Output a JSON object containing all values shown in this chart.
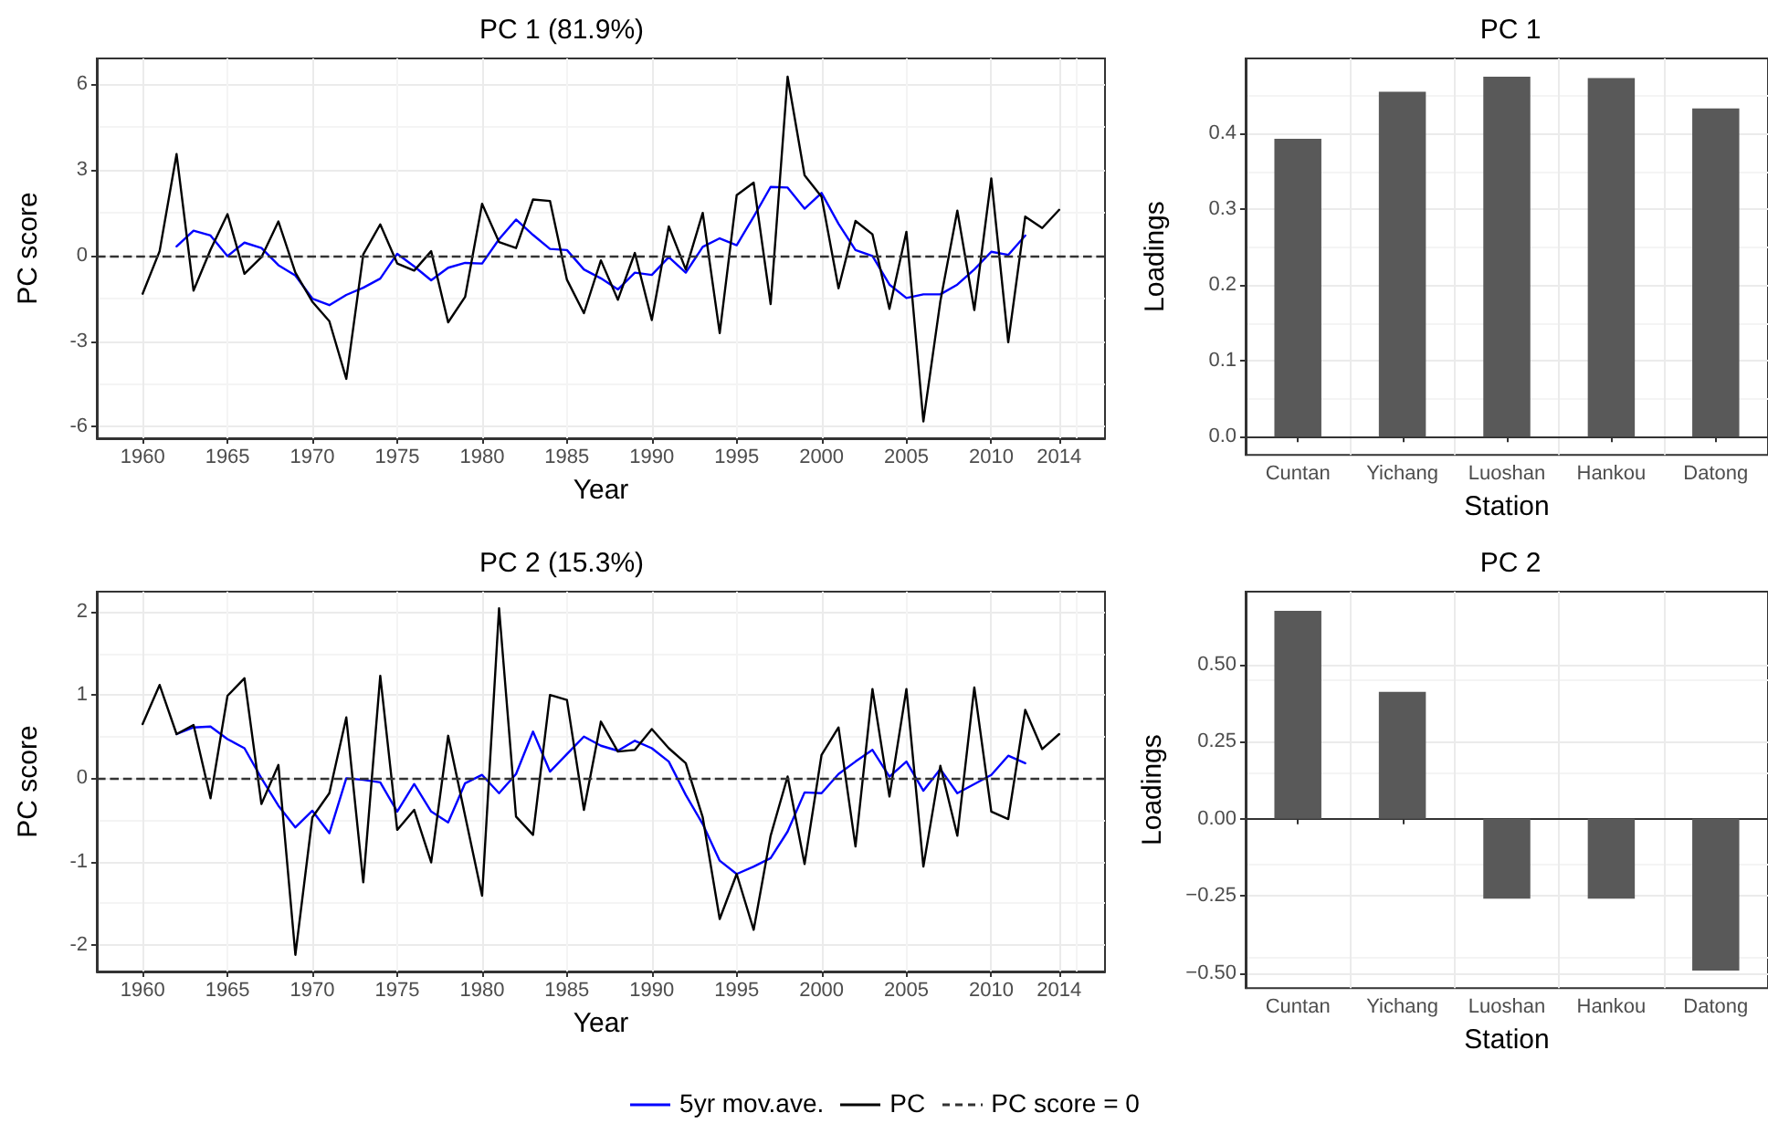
{
  "chart_data": [
    {
      "type": "line",
      "title": "PC 1 (81.9%)",
      "xlabel": "Year",
      "ylabel": "PC score",
      "x": [
        1960,
        1961,
        1962,
        1963,
        1964,
        1965,
        1966,
        1967,
        1968,
        1969,
        1970,
        1971,
        1972,
        1973,
        1974,
        1975,
        1976,
        1977,
        1978,
        1979,
        1980,
        1981,
        1982,
        1983,
        1984,
        1985,
        1986,
        1987,
        1988,
        1989,
        1990,
        1991,
        1992,
        1993,
        1994,
        1995,
        1996,
        1997,
        1998,
        1999,
        2000,
        2001,
        2002,
        2003,
        2004,
        2005,
        2006,
        2007,
        2008,
        2009,
        2010,
        2011,
        2012,
        2013,
        2014
      ],
      "series": [
        {
          "name": "5yr mov.ave.",
          "color": "#0000ff",
          "values": [
            null,
            null,
            0.32,
            0.87,
            0.7,
            -0.02,
            0.45,
            0.26,
            -0.34,
            -0.7,
            -1.51,
            -1.74,
            -1.38,
            -1.13,
            -0.81,
            0.06,
            -0.38,
            -0.87,
            -0.43,
            -0.26,
            -0.28,
            0.57,
            1.26,
            0.72,
            0.23,
            0.19,
            -0.49,
            -0.8,
            -1.19,
            -0.6,
            -0.68,
            -0.06,
            -0.6,
            0.3,
            0.6,
            0.36,
            1.36,
            2.4,
            2.38,
            1.64,
            2.19,
            1.11,
            0.19,
            -0.02,
            -1.02,
            -1.49,
            -1.36,
            -1.36,
            -1.02,
            -0.49,
            0.13,
            0.02,
            0.7,
            null,
            null
          ]
        },
        {
          "name": "PC",
          "color": "#000000",
          "values": [
            -1.34,
            0.15,
            3.55,
            -1.23,
            0.2,
            1.45,
            -0.64,
            -0.06,
            1.19,
            -0.6,
            -1.62,
            -2.3,
            -4.32,
            0.04,
            1.09,
            -0.28,
            -0.53,
            0.15,
            -2.34,
            -1.45,
            1.81,
            0.47,
            0.26,
            1.96,
            1.91,
            -0.85,
            -2.02,
            -0.17,
            -1.55,
            0.09,
            -2.26,
            1.02,
            -0.49,
            1.49,
            -2.72,
            2.11,
            2.55,
            -1.7,
            6.26,
            2.81,
            2.06,
            -1.15,
            1.21,
            0.74,
            -1.87,
            0.83,
            -5.81,
            -1.6,
            1.57,
            -1.91,
            2.7,
            -3.04,
            1.36,
            0.96,
            1.6
          ]
        }
      ],
      "xlim": [
        1957.3,
        2016.7
      ],
      "xticks": [
        1960,
        1965,
        1970,
        1975,
        1980,
        1985,
        1990,
        1995,
        2000,
        2005,
        2010,
        2014
      ],
      "ylim": [
        -6.4,
        6.9
      ],
      "yticks": [
        -6,
        -3,
        0,
        3,
        6
      ],
      "ref_lines": [
        {
          "axis": "y",
          "value": 0,
          "label": "PC score = 0",
          "color": "#333333",
          "line_style": "dashed"
        }
      ],
      "grid": true,
      "legend": "bottom",
      "marker": "none"
    },
    {
      "type": "line",
      "title": "PC 2 (15.3%)",
      "xlabel": "Year",
      "ylabel": "PC score",
      "x": [
        1960,
        1961,
        1962,
        1963,
        1964,
        1965,
        1966,
        1967,
        1968,
        1969,
        1970,
        1971,
        1972,
        1973,
        1974,
        1975,
        1976,
        1977,
        1978,
        1979,
        1980,
        1981,
        1982,
        1983,
        1984,
        1985,
        1986,
        1987,
        1988,
        1989,
        1990,
        1991,
        1992,
        1993,
        1994,
        1995,
        1996,
        1997,
        1998,
        1999,
        2000,
        2001,
        2002,
        2003,
        2004,
        2005,
        2006,
        2007,
        2008,
        2009,
        2010,
        2011,
        2012,
        2013,
        2014
      ],
      "series": [
        {
          "color": "#0000ff",
          "values": [
            null,
            null,
            0.53,
            0.61,
            0.62,
            0.47,
            0.36,
            0.0,
            -0.33,
            -0.59,
            -0.39,
            -0.66,
            0.0,
            -0.02,
            -0.05,
            -0.4,
            -0.07,
            -0.4,
            -0.53,
            -0.06,
            0.04,
            -0.18,
            0.05,
            0.56,
            0.08,
            0.29,
            0.5,
            0.39,
            0.33,
            0.45,
            0.36,
            0.2,
            -0.2,
            -0.55,
            -0.99,
            -1.15,
            -1.06,
            -0.96,
            -0.64,
            -0.17,
            -0.18,
            0.05,
            0.2,
            0.34,
            0.02,
            0.2,
            -0.15,
            0.11,
            -0.18,
            -0.07,
            0.04,
            0.27,
            0.18,
            null,
            null
          ]
        },
        {
          "color": "#000000",
          "values": [
            0.65,
            1.12,
            0.53,
            0.64,
            -0.24,
            0.99,
            1.2,
            -0.31,
            0.16,
            -2.12,
            -0.47,
            -0.18,
            0.73,
            -1.25,
            1.23,
            -0.62,
            -0.38,
            -1.01,
            0.51,
            -0.45,
            -1.41,
            2.04,
            -0.46,
            -0.68,
            1.0,
            0.94,
            -0.38,
            0.68,
            0.32,
            0.34,
            0.59,
            0.36,
            0.18,
            -0.47,
            -1.69,
            -1.15,
            -1.82,
            -0.69,
            0.02,
            -1.03,
            0.28,
            0.61,
            -0.82,
            1.07,
            -0.22,
            1.07,
            -1.06,
            0.15,
            -0.69,
            1.09,
            -0.4,
            -0.49,
            0.82,
            0.35,
            0.53
          ]
        }
      ],
      "xlim": [
        1957.3,
        2016.7
      ],
      "xticks": [
        1960,
        1965,
        1970,
        1975,
        1980,
        1985,
        1990,
        1995,
        2000,
        2005,
        2010,
        2014
      ],
      "ylim": [
        -2.32,
        2.24
      ],
      "yticks": [
        -2,
        -1,
        0,
        1,
        2
      ],
      "ref_lines": [
        {
          "axis": "y",
          "value": 0,
          "color": "#333333",
          "line_style": "dashed"
        }
      ],
      "grid": true,
      "marker": "none"
    },
    {
      "type": "bar",
      "title": "PC 1",
      "xlabel": "Station",
      "ylabel": "Loadings",
      "categories": [
        "Cuntan",
        "Yichang",
        "Luoshan",
        "Hankou",
        "Datong"
      ],
      "values": [
        0.393,
        0.455,
        0.475,
        0.473,
        0.433
      ],
      "color": "#595959",
      "ylim": [
        -0.024,
        0.499
      ],
      "yticks": [
        {
          "value": 0,
          "label": "0.0"
        },
        {
          "value": 0.1,
          "label": "0.1"
        },
        {
          "value": 0.2,
          "label": "0.2"
        },
        {
          "value": 0.3,
          "label": "0.3"
        },
        {
          "value": 0.4,
          "label": "0.4"
        }
      ],
      "grid": true
    },
    {
      "type": "bar",
      "title": "PC 2",
      "xlabel": "Station",
      "ylabel": "Loadings",
      "categories": [
        "Cuntan",
        "Yichang",
        "Luoshan",
        "Hankou",
        "Datong"
      ],
      "values": [
        0.675,
        0.412,
        -0.259,
        -0.259,
        -0.492
      ],
      "color": "#595959",
      "ylim": [
        -0.549,
        0.737
      ],
      "yticks": [
        {
          "value": -0.5,
          "label": "−0.50"
        },
        {
          "value": -0.25,
          "label": "−0.25"
        },
        {
          "value": 0,
          "label": "0.00"
        },
        {
          "value": 0.25,
          "label": "0.25"
        },
        {
          "value": 0.5,
          "label": "0.50"
        }
      ],
      "grid": true
    }
  ]
}
